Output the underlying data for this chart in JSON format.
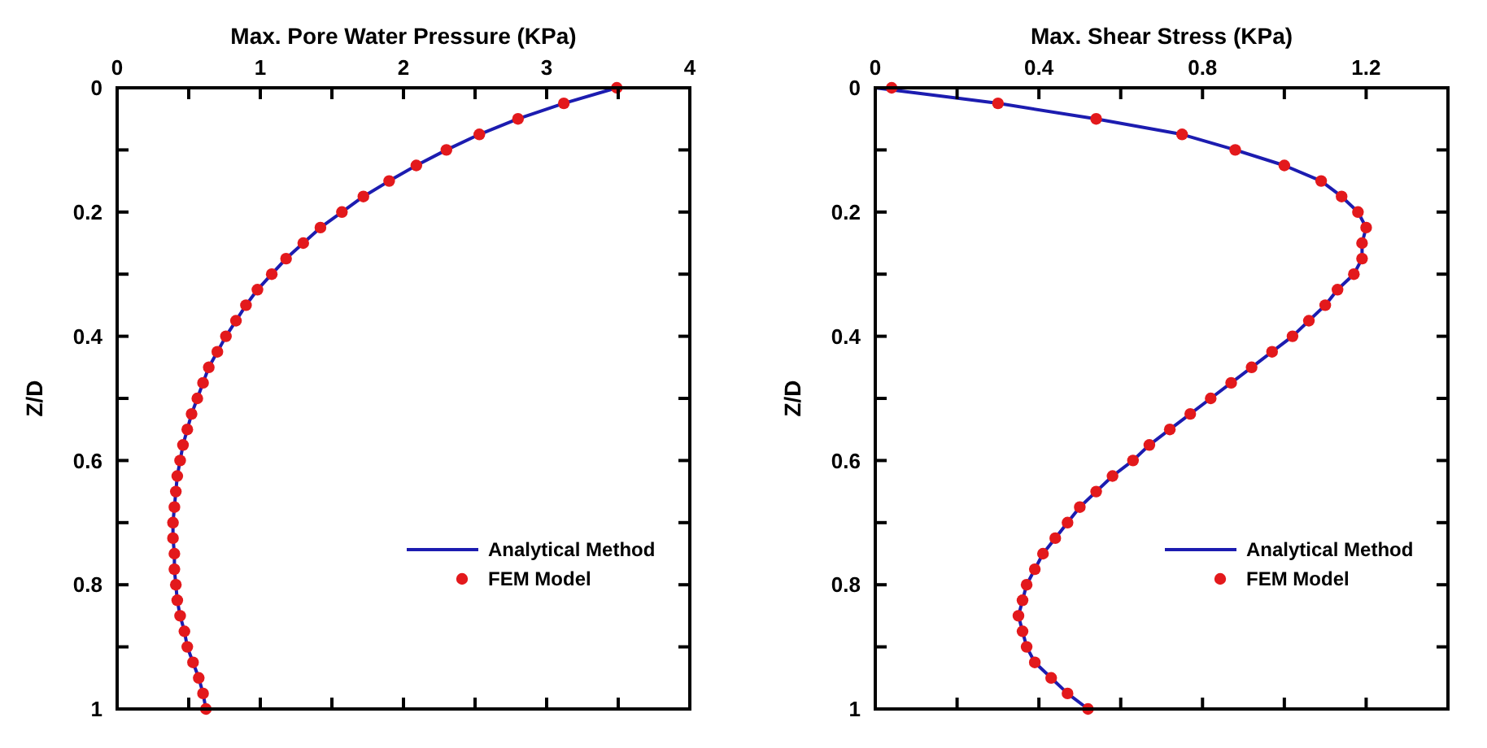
{
  "chart_data": [
    {
      "type": "line",
      "xlabel": "Max. Pore Water Pressure (KPa)",
      "ylabel": "Z/D",
      "xlim": [
        0,
        4
      ],
      "xticks": [
        0,
        {
          "value": 0.5,
          "label": null
        },
        1,
        {
          "value": 1.5,
          "label": null
        },
        2,
        {
          "value": 2.5,
          "label": null
        },
        3,
        {
          "value": 3.5,
          "label": null
        },
        4
      ],
      "ylim": [
        1,
        0
      ],
      "yticks": [
        0,
        {
          "value": 0.1,
          "label": null
        },
        0.2,
        {
          "value": 0.3,
          "label": null
        },
        0.4,
        {
          "value": 0.5,
          "label": null
        },
        0.6,
        {
          "value": 0.7,
          "label": null
        },
        0.8,
        {
          "value": 0.9,
          "label": null
        },
        1
      ],
      "legend": "bottom right",
      "series": [
        {
          "name": "Analytical Method",
          "color": "#1c1cb0",
          "line_style": "solid",
          "x": [
            3.49,
            3.12,
            2.8,
            2.53,
            2.3,
            2.09,
            1.9,
            1.72,
            1.57,
            1.42,
            1.3,
            1.18,
            1.08,
            0.98,
            0.9,
            0.83,
            0.76,
            0.7,
            0.64,
            0.6,
            0.56,
            0.52,
            0.49,
            0.46,
            0.44,
            0.42,
            0.41,
            0.4,
            0.39,
            0.39,
            0.4,
            0.4,
            0.41,
            0.42,
            0.44,
            0.47,
            0.49,
            0.53,
            0.57,
            0.6,
            0.62
          ],
          "values": [
            0,
            0.025,
            0.05,
            0.075,
            0.1,
            0.125,
            0.15,
            0.175,
            0.2,
            0.225,
            0.25,
            0.275,
            0.3,
            0.325,
            0.35,
            0.375,
            0.4,
            0.425,
            0.45,
            0.475,
            0.5,
            0.525,
            0.55,
            0.575,
            0.6,
            0.625,
            0.65,
            0.675,
            0.7,
            0.725,
            0.75,
            0.775,
            0.8,
            0.825,
            0.85,
            0.875,
            0.9,
            0.925,
            0.95,
            0.975,
            1
          ]
        },
        {
          "name": "FEM Model",
          "type": "scatter",
          "color": "#e3191c",
          "marker": "circle",
          "x": [
            3.49,
            3.12,
            2.8,
            2.53,
            2.3,
            2.09,
            1.9,
            1.72,
            1.57,
            1.42,
            1.3,
            1.18,
            1.08,
            0.98,
            0.9,
            0.83,
            0.76,
            0.7,
            0.64,
            0.6,
            0.56,
            0.52,
            0.49,
            0.46,
            0.44,
            0.42,
            0.41,
            0.4,
            0.39,
            0.39,
            0.4,
            0.4,
            0.41,
            0.42,
            0.44,
            0.47,
            0.49,
            0.53,
            0.57,
            0.6,
            0.62
          ],
          "values": [
            0,
            0.025,
            0.05,
            0.075,
            0.1,
            0.125,
            0.15,
            0.175,
            0.2,
            0.225,
            0.25,
            0.275,
            0.3,
            0.325,
            0.35,
            0.375,
            0.4,
            0.425,
            0.45,
            0.475,
            0.5,
            0.525,
            0.55,
            0.575,
            0.6,
            0.625,
            0.65,
            0.675,
            0.7,
            0.725,
            0.75,
            0.775,
            0.8,
            0.825,
            0.85,
            0.875,
            0.9,
            0.925,
            0.95,
            0.975,
            1
          ]
        }
      ]
    },
    {
      "type": "line",
      "xlabel": "Max. Shear Stress (KPa)",
      "ylabel": "Z/D",
      "xlim": [
        0,
        1.4
      ],
      "xticks": [
        0,
        {
          "value": 0.2,
          "label": null
        },
        0.4,
        {
          "value": 0.6,
          "label": null
        },
        0.8,
        {
          "value": 1.0,
          "label": null
        },
        1.2
      ],
      "ylim": [
        1,
        0
      ],
      "yticks": [
        0,
        {
          "value": 0.1,
          "label": null
        },
        0.2,
        {
          "value": 0.3,
          "label": null
        },
        0.4,
        {
          "value": 0.5,
          "label": null
        },
        0.6,
        {
          "value": 0.7,
          "label": null
        },
        0.8,
        {
          "value": 0.9,
          "label": null
        },
        1
      ],
      "legend": "bottom right",
      "series": [
        {
          "name": "Analytical Method",
          "color": "#1c1cb0",
          "line_style": "solid",
          "x": [
            0,
            0.3,
            0.54,
            0.75,
            0.88,
            1.0,
            1.09,
            1.14,
            1.18,
            1.2,
            1.19,
            1.19,
            1.17,
            1.13,
            1.1,
            1.06,
            1.02,
            0.97,
            0.92,
            0.87,
            0.82,
            0.77,
            0.72,
            0.67,
            0.63,
            0.58,
            0.54,
            0.5,
            0.47,
            0.44,
            0.41,
            0.39,
            0.37,
            0.36,
            0.35,
            0.36,
            0.37,
            0.39,
            0.43,
            0.47,
            0.52
          ],
          "values": [
            0,
            0.025,
            0.05,
            0.075,
            0.1,
            0.125,
            0.15,
            0.175,
            0.2,
            0.225,
            0.25,
            0.275,
            0.3,
            0.325,
            0.35,
            0.375,
            0.4,
            0.425,
            0.45,
            0.475,
            0.5,
            0.525,
            0.55,
            0.575,
            0.6,
            0.625,
            0.65,
            0.675,
            0.7,
            0.725,
            0.75,
            0.775,
            0.8,
            0.825,
            0.85,
            0.875,
            0.9,
            0.925,
            0.95,
            0.975,
            1
          ]
        },
        {
          "name": "FEM Model",
          "type": "scatter",
          "color": "#e3191c",
          "marker": "circle",
          "x": [
            0.04,
            0.3,
            0.54,
            0.75,
            0.88,
            1.0,
            1.09,
            1.14,
            1.18,
            1.2,
            1.19,
            1.19,
            1.17,
            1.13,
            1.1,
            1.06,
            1.02,
            0.97,
            0.92,
            0.87,
            0.82,
            0.77,
            0.72,
            0.67,
            0.63,
            0.58,
            0.54,
            0.5,
            0.47,
            0.44,
            0.41,
            0.39,
            0.37,
            0.36,
            0.35,
            0.36,
            0.37,
            0.39,
            0.43,
            0.47,
            0.52
          ],
          "values": [
            0,
            0.025,
            0.05,
            0.075,
            0.1,
            0.125,
            0.15,
            0.175,
            0.2,
            0.225,
            0.25,
            0.275,
            0.3,
            0.325,
            0.35,
            0.375,
            0.4,
            0.425,
            0.45,
            0.475,
            0.5,
            0.525,
            0.55,
            0.575,
            0.6,
            0.625,
            0.65,
            0.675,
            0.7,
            0.725,
            0.75,
            0.775,
            0.8,
            0.825,
            0.85,
            0.875,
            0.9,
            0.925,
            0.95,
            0.975,
            1
          ]
        }
      ]
    }
  ]
}
